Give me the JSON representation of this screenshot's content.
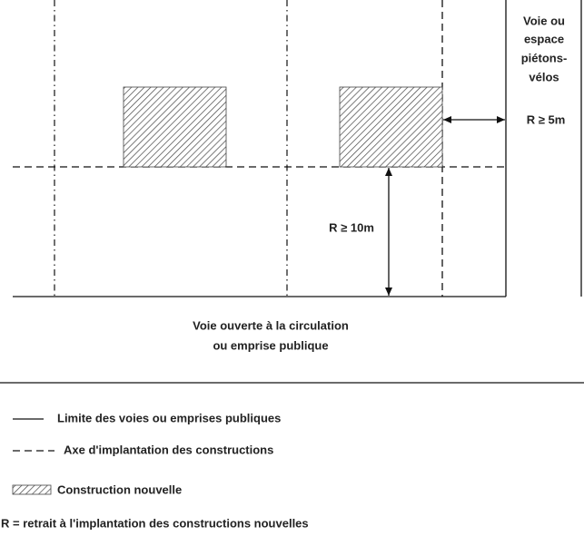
{
  "diagram": {
    "side_label": [
      "Voie ou",
      "espace",
      "piétons-",
      "vélos"
    ],
    "side_setback": "R ≥ 5m",
    "front_setback": "R ≥ 10m",
    "road_label": [
      "Voie ouverte à la circulation",
      "ou emprise publique"
    ]
  },
  "legend": {
    "solid_line": "Limite des voies ou emprises publiques",
    "dashed_line": "Axe d'implantation des constructions",
    "hatch": "Construction nouvelle",
    "note": "R = retrait à l'implantation des constructions nouvelles"
  }
}
